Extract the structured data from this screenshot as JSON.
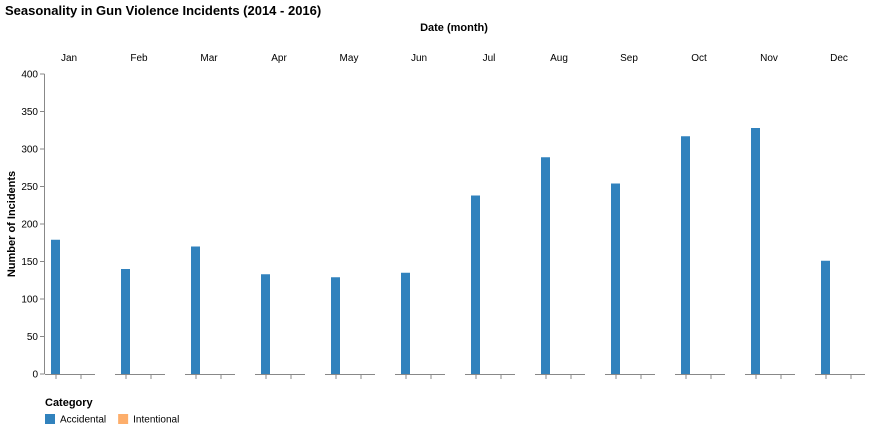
{
  "chart_data": {
    "type": "bar",
    "title": "Seasonality in Gun Violence Incidents (2014 - 2016)",
    "facet_title": "Date (month)",
    "ylabel": "Number of Incidents",
    "ylim": [
      0,
      400
    ],
    "yticks": [
      0,
      50,
      100,
      150,
      200,
      250,
      300,
      350,
      400
    ],
    "categories": [
      "Jan",
      "Feb",
      "Mar",
      "Apr",
      "May",
      "Jun",
      "Jul",
      "Aug",
      "Sep",
      "Oct",
      "Nov",
      "Dec"
    ],
    "series": [
      {
        "name": "Accidental",
        "color": "#3182bd",
        "values": [
          179,
          140,
          170,
          133,
          129,
          135,
          238,
          289,
          254,
          317,
          328,
          151
        ]
      },
      {
        "name": "Intentional",
        "color": "#fdae6b",
        "values": [
          0,
          0,
          0,
          0,
          0,
          0,
          0,
          0,
          0,
          0,
          0,
          0
        ]
      }
    ],
    "legend": {
      "title": "Category",
      "placement": "bottom-left"
    },
    "grid": false
  }
}
